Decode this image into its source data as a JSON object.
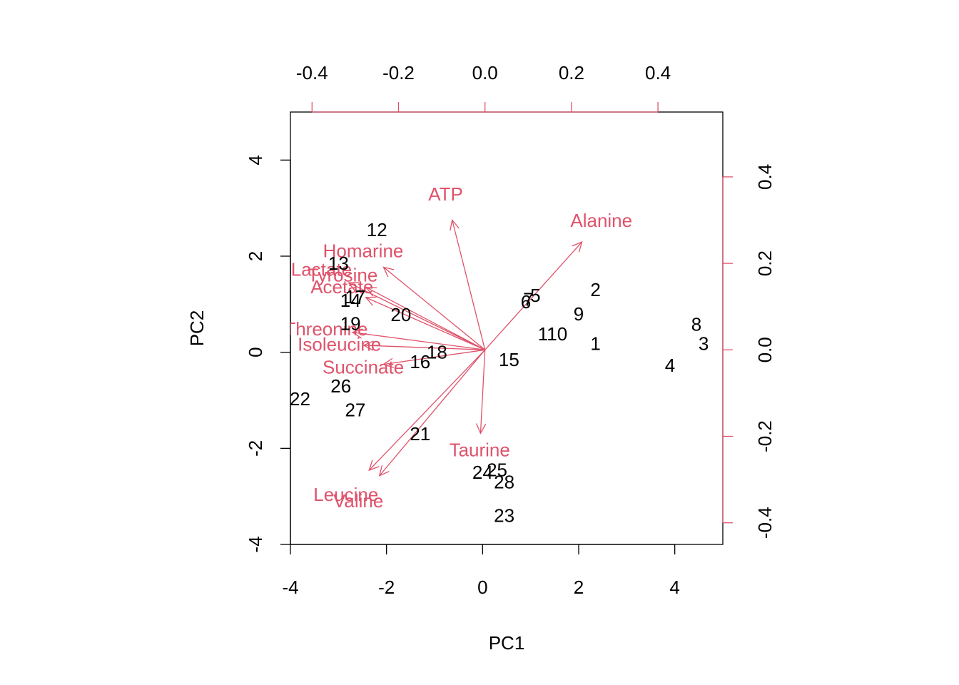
{
  "colors": {
    "observation": "#000000",
    "variable": "#DF536B"
  },
  "chart_data": {
    "type": "scatter",
    "subtype": "biplot",
    "xlabel": "PC1",
    "ylabel": "PC2",
    "xlim": [
      -4,
      5
    ],
    "ylim": [
      -4,
      5
    ],
    "x_ticks": [
      -4,
      -2,
      0,
      2,
      4
    ],
    "y_ticks": [
      -4,
      -2,
      0,
      2,
      4
    ],
    "secondary_xlim": [
      -0.45,
      0.55
    ],
    "secondary_ylim": [
      -0.45,
      0.55
    ],
    "secondary_ticks": [
      -0.4,
      -0.2,
      0.0,
      0.2,
      0.4
    ],
    "secondary_tick_labels": [
      "-0.4",
      "-0.2",
      "0.0",
      "0.2",
      "0.4"
    ],
    "observations": [
      {
        "label": "1",
        "x": 2.35,
        "y": 0.18
      },
      {
        "label": "2",
        "x": 2.35,
        "y": 1.3
      },
      {
        "label": "3",
        "x": 4.6,
        "y": 0.18
      },
      {
        "label": "4",
        "x": 3.9,
        "y": -0.27
      },
      {
        "label": "5",
        "x": 1.1,
        "y": 1.18
      },
      {
        "label": "6",
        "x": 0.9,
        "y": 1.05
      },
      {
        "label": "7",
        "x": 0.95,
        "y": 1.1
      },
      {
        "label": "8",
        "x": 4.45,
        "y": 0.58
      },
      {
        "label": "9",
        "x": 2.0,
        "y": 0.8
      },
      {
        "label": "10",
        "x": 1.55,
        "y": 0.38
      },
      {
        "label": "11",
        "x": 1.35,
        "y": 0.38
      },
      {
        "label": "12",
        "x": -2.2,
        "y": 2.55
      },
      {
        "label": "13",
        "x": -3.0,
        "y": 1.85
      },
      {
        "label": "14",
        "x": -2.75,
        "y": 1.08
      },
      {
        "label": "15",
        "x": 0.55,
        "y": -0.15
      },
      {
        "label": "16",
        "x": -1.3,
        "y": -0.2
      },
      {
        "label": "17",
        "x": -2.65,
        "y": 1.15
      },
      {
        "label": "18",
        "x": -0.95,
        "y": 0.0
      },
      {
        "label": "19",
        "x": -2.75,
        "y": 0.6
      },
      {
        "label": "20",
        "x": -1.7,
        "y": 0.78
      },
      {
        "label": "21",
        "x": -1.3,
        "y": -1.7
      },
      {
        "label": "22",
        "x": -3.8,
        "y": -0.97
      },
      {
        "label": "23",
        "x": 0.45,
        "y": -3.4
      },
      {
        "label": "24",
        "x": 0.0,
        "y": -2.5
      },
      {
        "label": "25",
        "x": 0.3,
        "y": -2.45
      },
      {
        "label": "26",
        "x": -2.95,
        "y": -0.7
      },
      {
        "label": "27",
        "x": -2.65,
        "y": -1.2
      },
      {
        "label": "28",
        "x": 0.45,
        "y": -2.7
      }
    ],
    "variables": [
      {
        "name": "ATP",
        "x": -0.0758,
        "y": 0.3
      },
      {
        "name": "Alanine",
        "x": 0.2242,
        "y": 0.2494
      },
      {
        "name": "Homarine",
        "x": -0.2347,
        "y": 0.1912
      },
      {
        "name": "Lactate",
        "x": -0.3153,
        "y": 0.1553
      },
      {
        "name": "Tyrosine",
        "x": -0.2744,
        "y": 0.1443
      },
      {
        "name": "Acetate",
        "x": -0.2756,
        "y": 0.1212
      },
      {
        "name": "Threonine",
        "x": -0.3064,
        "y": 0.0406
      },
      {
        "name": "Isoleucine",
        "x": -0.2805,
        "y": 0.0105
      },
      {
        "name": "Succinate",
        "x": -0.2346,
        "y": -0.0335
      },
      {
        "name": "Taurine",
        "x": -0.0103,
        "y": -0.1931
      },
      {
        "name": "Leucine",
        "x": -0.268,
        "y": -0.2784
      },
      {
        "name": "Valine",
        "x": -0.2441,
        "y": -0.2912
      }
    ]
  }
}
